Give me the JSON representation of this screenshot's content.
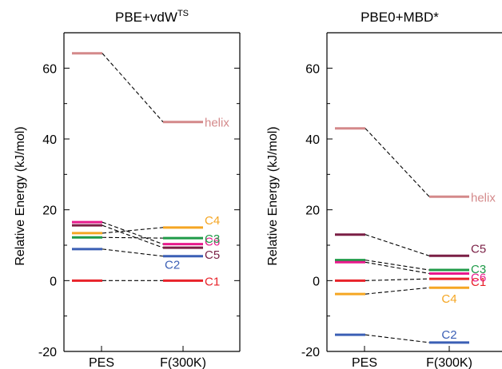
{
  "chart_data": [
    {
      "type": "line",
      "title": "PBE+vdW",
      "title_superscript": "TS",
      "ylabel": "Relative Energy (kJ/mol)",
      "ylim": [
        -20,
        70
      ],
      "yticks": [
        "-20",
        "0",
        "20",
        "40",
        "60"
      ],
      "categories": [
        "PES",
        "F(300K)"
      ],
      "series": [
        {
          "name": "helix",
          "values": [
            64.2,
            44.8
          ],
          "color": "#d4898a",
          "label_dy": 0
        },
        {
          "name": "C6",
          "values": [
            16.5,
            10.3
          ],
          "color": "#e8198c",
          "label_dy": -4
        },
        {
          "name": "C5",
          "values": [
            15.6,
            9.3
          ],
          "color": "#7a1f45",
          "label_dy": 8
        },
        {
          "name": "C4",
          "values": [
            13.4,
            15.0
          ],
          "color": "#f5a623",
          "label_dy": -10
        },
        {
          "name": "C3",
          "values": [
            12.2,
            12.0
          ],
          "color": "#1f9a48",
          "label_dy": 0
        },
        {
          "name": "C2",
          "values": [
            8.9,
            6.9
          ],
          "color": "#3b5fb5",
          "label_dy": 10,
          "label_side": "left"
        },
        {
          "name": "C1",
          "values": [
            0.0,
            0.0
          ],
          "color": "#e8232a",
          "label_dy": 0
        }
      ]
    },
    {
      "type": "line",
      "title": "PBE0+MBD*",
      "ylabel": "Relative Energy (kJ/mol)",
      "ylim": [
        -20,
        70
      ],
      "yticks": [
        "-20",
        "0",
        "20",
        "40",
        "60"
      ],
      "categories": [
        "PES",
        "F(300K)"
      ],
      "series": [
        {
          "name": "helix",
          "values": [
            43.0,
            23.7
          ],
          "color": "#d4898a",
          "label_dy": 0
        },
        {
          "name": "C5",
          "values": [
            13.0,
            7.0
          ],
          "color": "#7a1f45",
          "label_dy": -10
        },
        {
          "name": "C3",
          "values": [
            5.8,
            3.0
          ],
          "color": "#1f9a48",
          "label_dy": -2
        },
        {
          "name": "C6",
          "values": [
            5.2,
            2.0
          ],
          "color": "#e8198c",
          "label_dy": 4
        },
        {
          "name": "C1",
          "values": [
            0.0,
            0.5
          ],
          "color": "#e8232a",
          "label_dy": 3
        },
        {
          "name": "C4",
          "values": [
            -3.8,
            -2.0
          ],
          "color": "#f5a623",
          "label_dy": 13,
          "label_side": "center"
        },
        {
          "name": "C2",
          "values": [
            -15.3,
            -17.5
          ],
          "color": "#3b5fb5",
          "label_dy": -11,
          "label_side": "center"
        }
      ]
    }
  ]
}
